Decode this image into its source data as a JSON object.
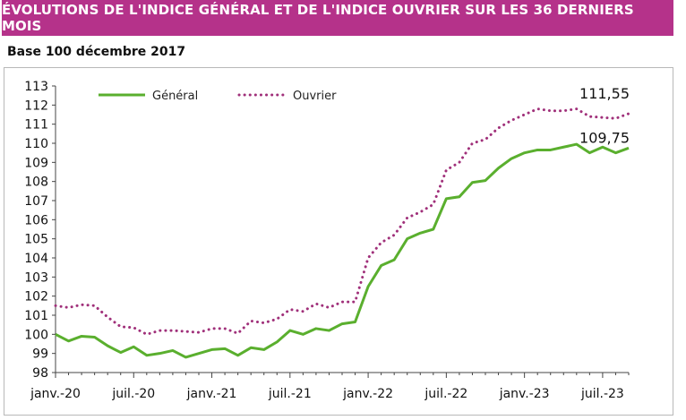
{
  "header": {
    "title": "ÉVOLUTIONS DE L'INDICE GÉNÉRAL ET DE L'INDICE OUVRIER SUR LES 36 DERNIERS MOIS",
    "subtitle": "Base 100 décembre 2017"
  },
  "colors": {
    "banner": "#b5328a",
    "general": "#5aaf2e",
    "ouvrier": "#a0307a",
    "axis": "#444444"
  },
  "chart_data": {
    "type": "line",
    "x": [
      "janv.-20",
      "févr.-20",
      "mars-20",
      "avr.-20",
      "mai-20",
      "juin-20",
      "juil.-20",
      "août-20",
      "sept.-20",
      "oct.-20",
      "nov.-20",
      "déc.-20",
      "janv.-21",
      "févr.-21",
      "mars-21",
      "avr.-21",
      "mai-21",
      "juin-21",
      "juil.-21",
      "août-21",
      "sept.-21",
      "oct.-21",
      "nov.-21",
      "déc.-21",
      "janv.-22",
      "févr.-22",
      "mars-22",
      "avr.-22",
      "mai-22",
      "juin-22",
      "juil.-22",
      "août-22",
      "sept.-22",
      "oct.-22",
      "nov.-22",
      "déc.-22",
      "janv.-23",
      "févr.-23",
      "mars-23",
      "avr.-23",
      "mai-23",
      "juin-23",
      "juil.-23",
      "août-23",
      "sept.-23"
    ],
    "x_tick_labels": [
      "janv.-20",
      "juil.-20",
      "janv.-21",
      "juil.-21",
      "janv.-22",
      "juil.-22",
      "janv.-23",
      "juil.-23"
    ],
    "ylim": [
      98,
      113
    ],
    "yticks": [
      98,
      99,
      100,
      101,
      102,
      103,
      104,
      105,
      106,
      107,
      108,
      109,
      110,
      111,
      112,
      113
    ],
    "series": [
      {
        "name": "Général",
        "style": "solid",
        "values": [
          100.0,
          99.65,
          99.9,
          99.85,
          99.4,
          99.05,
          99.35,
          98.9,
          99.0,
          99.15,
          98.8,
          99.0,
          99.2,
          99.25,
          98.9,
          99.3,
          99.2,
          99.6,
          100.2,
          100.0,
          100.3,
          100.2,
          100.55,
          100.65,
          102.5,
          103.6,
          103.9,
          105.0,
          105.3,
          105.5,
          107.1,
          107.2,
          107.95,
          108.05,
          108.7,
          109.2,
          109.5,
          109.65,
          109.65,
          109.8,
          109.95,
          109.5,
          109.8,
          109.5,
          109.75
        ]
      },
      {
        "name": "Ouvrier",
        "style": "dotted",
        "values": [
          101.5,
          101.4,
          101.55,
          101.5,
          100.9,
          100.4,
          100.35,
          100.0,
          100.2,
          100.2,
          100.15,
          100.1,
          100.3,
          100.3,
          100.05,
          100.7,
          100.6,
          100.8,
          101.3,
          101.2,
          101.6,
          101.4,
          101.7,
          101.7,
          104.0,
          104.8,
          105.2,
          106.1,
          106.4,
          106.8,
          108.6,
          109.0,
          110.0,
          110.2,
          110.8,
          111.2,
          111.5,
          111.8,
          111.7,
          111.7,
          111.8,
          111.4,
          111.35,
          111.3,
          111.55
        ]
      }
    ],
    "annotations": [
      {
        "series": "Ouvrier",
        "text": "111,55"
      },
      {
        "series": "Général",
        "text": "109,75"
      }
    ],
    "grid": {
      "horizontal": false,
      "vertical": false
    },
    "legend": "top-left"
  }
}
